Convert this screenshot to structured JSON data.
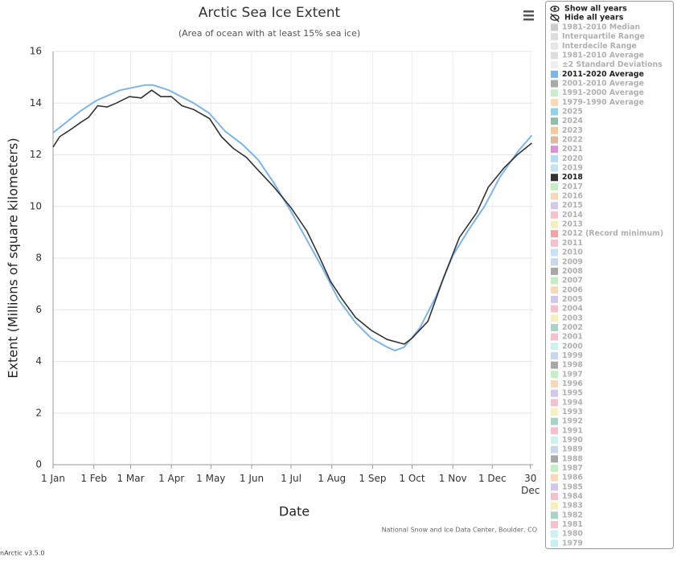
{
  "chart_data": {
    "type": "line",
    "title": "Arctic Sea Ice Extent",
    "subtitle": "(Area of ocean with at least 15% sea ice)",
    "x_label": "Date",
    "y_label": "Extent (Millions of square kilometers)",
    "credit": "National Snow and Ice Data Center, Boulder, CO",
    "version": "nArctic v3.5.0",
    "show_all": "Show all years",
    "hide_all": "Hide all years",
    "xlim": [
      1,
      366
    ],
    "ylim": [
      0,
      16
    ],
    "grid": true,
    "xticks": [
      {
        "value": 1,
        "label": "1 Jan"
      },
      {
        "value": 32,
        "label": "1 Feb"
      },
      {
        "value": 60,
        "label": "1 Mar"
      },
      {
        "value": 91,
        "label": "1 Apr"
      },
      {
        "value": 121,
        "label": "1 May"
      },
      {
        "value": 152,
        "label": "1 Jun"
      },
      {
        "value": 182,
        "label": "1 Jul"
      },
      {
        "value": 213,
        "label": "1 Aug"
      },
      {
        "value": 244,
        "label": "1 Sep"
      },
      {
        "value": 274,
        "label": "1 Oct"
      },
      {
        "value": 305,
        "label": "1 Nov"
      },
      {
        "value": 335,
        "label": "1 Dec"
      },
      {
        "value": 364,
        "label": "30\nDec"
      }
    ],
    "yticks": [
      0,
      2,
      4,
      6,
      8,
      10,
      12,
      14,
      16
    ],
    "series": [
      {
        "name": "2011-2020 Average",
        "color": "#7cb5ec",
        "x": [
          1,
          22,
          34,
          52,
          71,
          77,
          89,
          108,
          120,
          132,
          145,
          157,
          169,
          182,
          194,
          206,
          218,
          231,
          243,
          255,
          261,
          268,
          280,
          292,
          305,
          317,
          329,
          341,
          354,
          365
        ],
        "values": [
          12.85,
          13.7,
          14.1,
          14.5,
          14.7,
          14.7,
          14.5,
          14.0,
          13.6,
          12.9,
          12.4,
          11.8,
          10.9,
          9.8,
          8.7,
          7.6,
          6.4,
          5.5,
          4.9,
          4.55,
          4.42,
          4.55,
          5.3,
          6.5,
          8.1,
          9.1,
          10.0,
          11.15,
          12.1,
          12.75
        ]
      },
      {
        "name": "2018",
        "color": "#333333",
        "x": [
          1,
          6,
          15,
          22,
          28,
          35,
          42,
          49,
          59,
          68,
          76,
          83,
          91,
          99,
          108,
          120,
          129,
          138,
          148,
          157,
          169,
          182,
          194,
          203,
          212,
          221,
          231,
          243,
          255,
          268,
          274,
          286,
          298,
          310,
          323,
          332,
          344,
          354,
          365
        ],
        "values": [
          12.3,
          12.7,
          13.0,
          13.25,
          13.45,
          13.9,
          13.85,
          14.0,
          14.25,
          14.2,
          14.5,
          14.25,
          14.25,
          13.9,
          13.75,
          13.4,
          12.7,
          12.25,
          11.9,
          11.4,
          10.75,
          9.95,
          9.05,
          8.1,
          7.1,
          6.4,
          5.7,
          5.2,
          4.85,
          4.67,
          4.9,
          5.55,
          7.25,
          8.8,
          9.75,
          10.75,
          11.5,
          12.0,
          12.45
        ]
      }
    ],
    "legend": [
      [
        {
          "name": "1981-2010 Median",
          "color": "#cccccc"
        },
        {
          "name": "Interquartile Range",
          "color": "#dddddd"
        },
        {
          "name": "Interdecile Range",
          "color": "#e6e6e6"
        },
        {
          "name": "1981-2010 Average",
          "color": "#dddddd"
        },
        {
          "name": "±2 Standard Deviations",
          "color": "#eeeeee"
        }
      ],
      [
        {
          "name": "2001-2010 Average",
          "color": "#aaaaaa"
        },
        {
          "name": "1991-2000 Average",
          "color": "#c9eec9"
        },
        {
          "name": "1979-1990 Average",
          "color": "#fcd9b5"
        },
        {
          "name": "2025",
          "color": "#8fd3f0"
        },
        {
          "name": "2024",
          "color": "#8fbfa8"
        },
        {
          "name": "2023",
          "color": "#f7c89b"
        },
        {
          "name": "2022",
          "color": "#e0b8a0"
        },
        {
          "name": "2021",
          "color": "#e08fd8"
        },
        {
          "name": "2020",
          "color": "#b5dcf5"
        },
        {
          "name": "2019",
          "color": "#c6e2f7"
        }
      ],
      [
        {
          "name": "2017",
          "color": "#c2f0c2"
        },
        {
          "name": "2016",
          "color": "#f9d8b8"
        },
        {
          "name": "2015",
          "color": "#d2c8ee"
        },
        {
          "name": "2014",
          "color": "#f7c0cc"
        },
        {
          "name": "2013",
          "color": "#f7efbb"
        },
        {
          "name": "2012 (Record minimum)",
          "color": "#f4a3a3"
        },
        {
          "name": "2011",
          "color": "#f7c0cc"
        },
        {
          "name": "2010",
          "color": "#c6e2f7"
        },
        {
          "name": "2009",
          "color": "#c6d8f0"
        },
        {
          "name": "2008",
          "color": "#a8a8a8"
        },
        {
          "name": "2007",
          "color": "#c2f0c2"
        },
        {
          "name": "2006",
          "color": "#f9d8b8"
        },
        {
          "name": "2005",
          "color": "#d2c8ee"
        },
        {
          "name": "2004",
          "color": "#f7c0cc"
        },
        {
          "name": "2003",
          "color": "#f7efbb"
        },
        {
          "name": "2002",
          "color": "#a8d4c8"
        },
        {
          "name": "2001",
          "color": "#f7c0cc"
        },
        {
          "name": "2000",
          "color": "#cdf0f5"
        },
        {
          "name": "1999",
          "color": "#c6d8f0"
        },
        {
          "name": "1998",
          "color": "#a8a8a8"
        },
        {
          "name": "1997",
          "color": "#c2f0c2"
        },
        {
          "name": "1996",
          "color": "#f9d8b8"
        },
        {
          "name": "1995",
          "color": "#d2c8ee"
        },
        {
          "name": "1994",
          "color": "#f7c0cc"
        },
        {
          "name": "1993",
          "color": "#f7efbb"
        },
        {
          "name": "1992",
          "color": "#a8d4c8"
        },
        {
          "name": "1991",
          "color": "#f7c0cc"
        },
        {
          "name": "1990",
          "color": "#cdf0f5"
        },
        {
          "name": "1989",
          "color": "#c6d8f0"
        },
        {
          "name": "1988",
          "color": "#a8a8a8"
        },
        {
          "name": "1987",
          "color": "#c2f0c2"
        },
        {
          "name": "1986",
          "color": "#f9d8b8"
        },
        {
          "name": "1985",
          "color": "#d2c8ee"
        },
        {
          "name": "1984",
          "color": "#f7c0cc"
        },
        {
          "name": "1983",
          "color": "#f7efbb"
        },
        {
          "name": "1982",
          "color": "#a8d4c8"
        },
        {
          "name": "1981",
          "color": "#f7c0cc"
        },
        {
          "name": "1980",
          "color": "#cdf0f5"
        },
        {
          "name": "1979",
          "color": "#c6f0f0"
        }
      ]
    ]
  }
}
